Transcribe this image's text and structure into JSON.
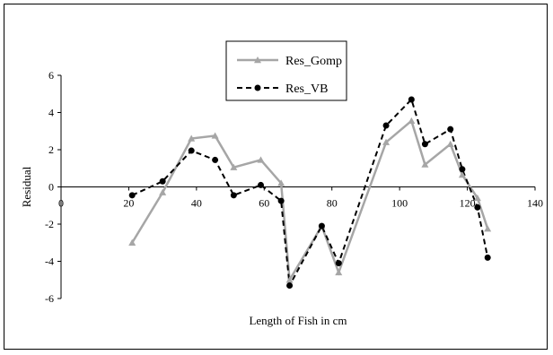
{
  "chart_data": {
    "type": "line",
    "title": "",
    "xlabel": "Length of Fish in cm",
    "ylabel": "Residual",
    "xlim": [
      0,
      140
    ],
    "ylim": [
      -6,
      6
    ],
    "xticks": [
      0,
      20,
      40,
      60,
      80,
      100,
      120,
      140
    ],
    "yticks": [
      -6,
      -4,
      -2,
      0,
      2,
      4,
      6
    ],
    "grid": false,
    "legend_position": "top-center",
    "series": [
      {
        "name": "Res_Gomp",
        "color": "#a6a6a6",
        "marker": "triangle",
        "line_style": "solid",
        "x": [
          21,
          30,
          38.5,
          45.5,
          51,
          59,
          65,
          67.5,
          77,
          82,
          96,
          103.5,
          107.5,
          115,
          118.5,
          123,
          126
        ],
        "y": [
          -3.0,
          -0.3,
          2.6,
          2.75,
          1.05,
          1.45,
          0.2,
          -5.0,
          -2.1,
          -4.6,
          2.4,
          3.55,
          1.2,
          2.3,
          0.65,
          -0.6,
          -2.25
        ]
      },
      {
        "name": "Res_VB",
        "color": "#000000",
        "marker": "circle",
        "line_style": "dashed",
        "x": [
          21,
          30,
          38.5,
          45.5,
          51,
          59,
          65,
          67.5,
          77,
          82,
          96,
          103.5,
          107.5,
          115,
          118.5,
          123,
          126
        ],
        "y": [
          -0.45,
          0.3,
          1.95,
          1.45,
          -0.45,
          0.1,
          -0.75,
          -5.3,
          -2.1,
          -4.1,
          3.3,
          4.7,
          2.3,
          3.1,
          0.95,
          -1.1,
          -3.8
        ]
      }
    ]
  }
}
